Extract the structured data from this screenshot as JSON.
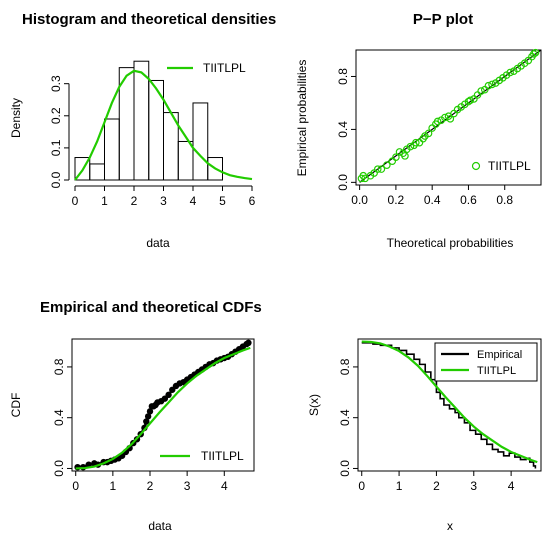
{
  "colors": {
    "theoretical": "#22cc00",
    "empirical": "#000000",
    "axis": "#000000"
  },
  "chart_data": [
    {
      "type": "bar",
      "title": "Histogram and theoretical densities",
      "xlabel": "data",
      "ylabel": "Density",
      "xlim": [
        0,
        6
      ],
      "ylim": [
        0,
        0.38
      ],
      "xticks": [
        "0",
        "1",
        "2",
        "3",
        "4",
        "5",
        "6"
      ],
      "yticks": [
        "0.0",
        "0.1",
        "0.2",
        "0.3"
      ],
      "bins": [
        {
          "from": 0.0,
          "to": 0.5,
          "density": 0.07
        },
        {
          "from": 0.5,
          "to": 1.0,
          "density": 0.05
        },
        {
          "from": 1.0,
          "to": 1.5,
          "density": 0.19
        },
        {
          "from": 1.5,
          "to": 2.0,
          "density": 0.35
        },
        {
          "from": 2.0,
          "to": 2.5,
          "density": 0.37
        },
        {
          "from": 2.5,
          "to": 3.0,
          "density": 0.31
        },
        {
          "from": 3.0,
          "to": 3.5,
          "density": 0.21
        },
        {
          "from": 3.5,
          "to": 4.0,
          "density": 0.12
        },
        {
          "from": 4.0,
          "to": 4.5,
          "density": 0.24
        },
        {
          "from": 4.5,
          "to": 5.0,
          "density": 0.07
        }
      ],
      "series": [
        {
          "name": "TIITLPL",
          "x": [
            0.0,
            0.25,
            0.5,
            0.75,
            1.0,
            1.25,
            1.5,
            1.75,
            2.0,
            2.25,
            2.5,
            2.75,
            3.0,
            3.25,
            3.5,
            3.75,
            4.0,
            4.25,
            4.5,
            4.75,
            5.0,
            5.25,
            5.5,
            5.75,
            6.0
          ],
          "values": [
            0.0,
            0.03,
            0.07,
            0.12,
            0.18,
            0.24,
            0.29,
            0.325,
            0.34,
            0.335,
            0.315,
            0.285,
            0.25,
            0.21,
            0.17,
            0.135,
            0.1,
            0.075,
            0.052,
            0.036,
            0.024,
            0.015,
            0.01,
            0.006,
            0.003
          ]
        }
      ],
      "legend": "top-right"
    },
    {
      "type": "scatter",
      "title": "P−P plot",
      "xlabel": "Theoretical probabilities",
      "ylabel": "Empirical probabilities",
      "xlim": [
        -0.02,
        1.0
      ],
      "ylim": [
        -0.02,
        1.0
      ],
      "xticks": [
        "0.0",
        "0.2",
        "0.4",
        "0.6",
        "0.8"
      ],
      "yticks": [
        "0.0",
        "0.4",
        "0.8"
      ],
      "series": [
        {
          "name": "TIITLPL",
          "x": [
            0.01,
            0.02,
            0.03,
            0.06,
            0.08,
            0.1,
            0.12,
            0.15,
            0.18,
            0.2,
            0.22,
            0.24,
            0.25,
            0.26,
            0.28,
            0.3,
            0.31,
            0.33,
            0.35,
            0.36,
            0.38,
            0.4,
            0.42,
            0.43,
            0.45,
            0.47,
            0.49,
            0.5,
            0.52,
            0.54,
            0.56,
            0.58,
            0.6,
            0.61,
            0.63,
            0.65,
            0.67,
            0.69,
            0.71,
            0.73,
            0.75,
            0.77,
            0.79,
            0.81,
            0.83,
            0.85,
            0.87,
            0.89,
            0.91,
            0.93,
            0.95,
            0.96,
            0.97
          ],
          "values": [
            0.03,
            0.05,
            0.03,
            0.05,
            0.07,
            0.1,
            0.1,
            0.13,
            0.16,
            0.19,
            0.23,
            0.22,
            0.2,
            0.25,
            0.27,
            0.28,
            0.3,
            0.3,
            0.33,
            0.35,
            0.37,
            0.41,
            0.44,
            0.46,
            0.47,
            0.49,
            0.5,
            0.48,
            0.52,
            0.55,
            0.57,
            0.59,
            0.61,
            0.62,
            0.63,
            0.66,
            0.69,
            0.7,
            0.73,
            0.74,
            0.75,
            0.77,
            0.79,
            0.81,
            0.83,
            0.84,
            0.86,
            0.88,
            0.9,
            0.92,
            0.95,
            0.97,
            0.98
          ]
        }
      ],
      "reference_line": [
        [
          0,
          0
        ],
        [
          1,
          1
        ]
      ],
      "legend": "bottom-right"
    },
    {
      "type": "line",
      "title": "Empirical and theoretical CDFs",
      "xlabel": "data",
      "ylabel": "CDF",
      "xlim": [
        -0.1,
        4.8
      ],
      "ylim": [
        -0.02,
        1.02
      ],
      "xticks": [
        "0",
        "1",
        "2",
        "3",
        "4"
      ],
      "yticks": [
        "0.0",
        "0.4",
        "0.8"
      ],
      "series": [
        {
          "name": "TIITLPL",
          "x": [
            0.0,
            0.25,
            0.5,
            0.75,
            1.0,
            1.25,
            1.5,
            1.75,
            2.0,
            2.25,
            2.5,
            2.75,
            3.0,
            3.25,
            3.5,
            3.75,
            4.0,
            4.25,
            4.5,
            4.7
          ],
          "values": [
            0.0,
            0.003,
            0.015,
            0.04,
            0.075,
            0.125,
            0.19,
            0.27,
            0.355,
            0.44,
            0.52,
            0.6,
            0.67,
            0.73,
            0.78,
            0.83,
            0.87,
            0.9,
            0.93,
            0.95
          ]
        },
        {
          "x": [
            0.05,
            0.2,
            0.35,
            0.5,
            0.6,
            0.75,
            0.85,
            0.95,
            1.05,
            1.15,
            1.25,
            1.35,
            1.45,
            1.55,
            1.65,
            1.75,
            1.85,
            1.9,
            1.95,
            2.0,
            2.05,
            2.1,
            2.15,
            2.2,
            2.3,
            2.4,
            2.5,
            2.6,
            2.7,
            2.8,
            2.9,
            3.0,
            3.1,
            3.2,
            3.3,
            3.4,
            3.5,
            3.6,
            3.7,
            3.8,
            3.9,
            4.0,
            4.1,
            4.2,
            4.3,
            4.4,
            4.5,
            4.6,
            4.65
          ],
          "values": [
            0.01,
            0.01,
            0.03,
            0.04,
            0.03,
            0.05,
            0.05,
            0.06,
            0.07,
            0.08,
            0.1,
            0.13,
            0.16,
            0.2,
            0.23,
            0.27,
            0.32,
            0.37,
            0.41,
            0.45,
            0.49,
            0.49,
            0.5,
            0.52,
            0.53,
            0.55,
            0.58,
            0.62,
            0.65,
            0.67,
            0.68,
            0.7,
            0.72,
            0.74,
            0.76,
            0.78,
            0.8,
            0.82,
            0.83,
            0.85,
            0.86,
            0.87,
            0.88,
            0.9,
            0.92,
            0.94,
            0.96,
            0.98,
            0.99
          ]
        }
      ],
      "legend": "bottom-right"
    },
    {
      "type": "line",
      "title": "",
      "xlabel": "x",
      "ylabel": "S(x)",
      "xlim": [
        -0.1,
        4.8
      ],
      "ylim": [
        -0.02,
        1.02
      ],
      "xticks": [
        "0",
        "1",
        "2",
        "3",
        "4"
      ],
      "yticks": [
        "0.0",
        "0.4",
        "0.8"
      ],
      "series": [
        {
          "name": "Empirical",
          "x": [
            0.0,
            0.3,
            0.5,
            0.8,
            1.0,
            1.2,
            1.4,
            1.55,
            1.7,
            1.85,
            2.0,
            2.1,
            2.2,
            2.35,
            2.5,
            2.6,
            2.75,
            2.9,
            3.05,
            3.2,
            3.35,
            3.5,
            3.65,
            3.8,
            3.95,
            4.1,
            4.25,
            4.4,
            4.5,
            4.6,
            4.65
          ],
          "values": [
            0.99,
            0.98,
            0.97,
            0.95,
            0.93,
            0.9,
            0.86,
            0.82,
            0.76,
            0.7,
            0.6,
            0.55,
            0.5,
            0.47,
            0.44,
            0.4,
            0.36,
            0.3,
            0.27,
            0.23,
            0.19,
            0.15,
            0.13,
            0.1,
            0.12,
            0.09,
            0.07,
            0.08,
            0.05,
            0.02,
            0.0
          ]
        },
        {
          "name": "TIITLPL",
          "x": [
            0.0,
            0.25,
            0.5,
            0.75,
            1.0,
            1.25,
            1.5,
            1.75,
            2.0,
            2.25,
            2.5,
            2.75,
            3.0,
            3.25,
            3.5,
            3.75,
            4.0,
            4.25,
            4.5,
            4.7
          ],
          "values": [
            1.0,
            0.997,
            0.985,
            0.96,
            0.925,
            0.875,
            0.81,
            0.73,
            0.645,
            0.56,
            0.48,
            0.4,
            0.33,
            0.27,
            0.22,
            0.17,
            0.13,
            0.1,
            0.07,
            0.05
          ]
        }
      ],
      "legend": "top-right"
    }
  ]
}
